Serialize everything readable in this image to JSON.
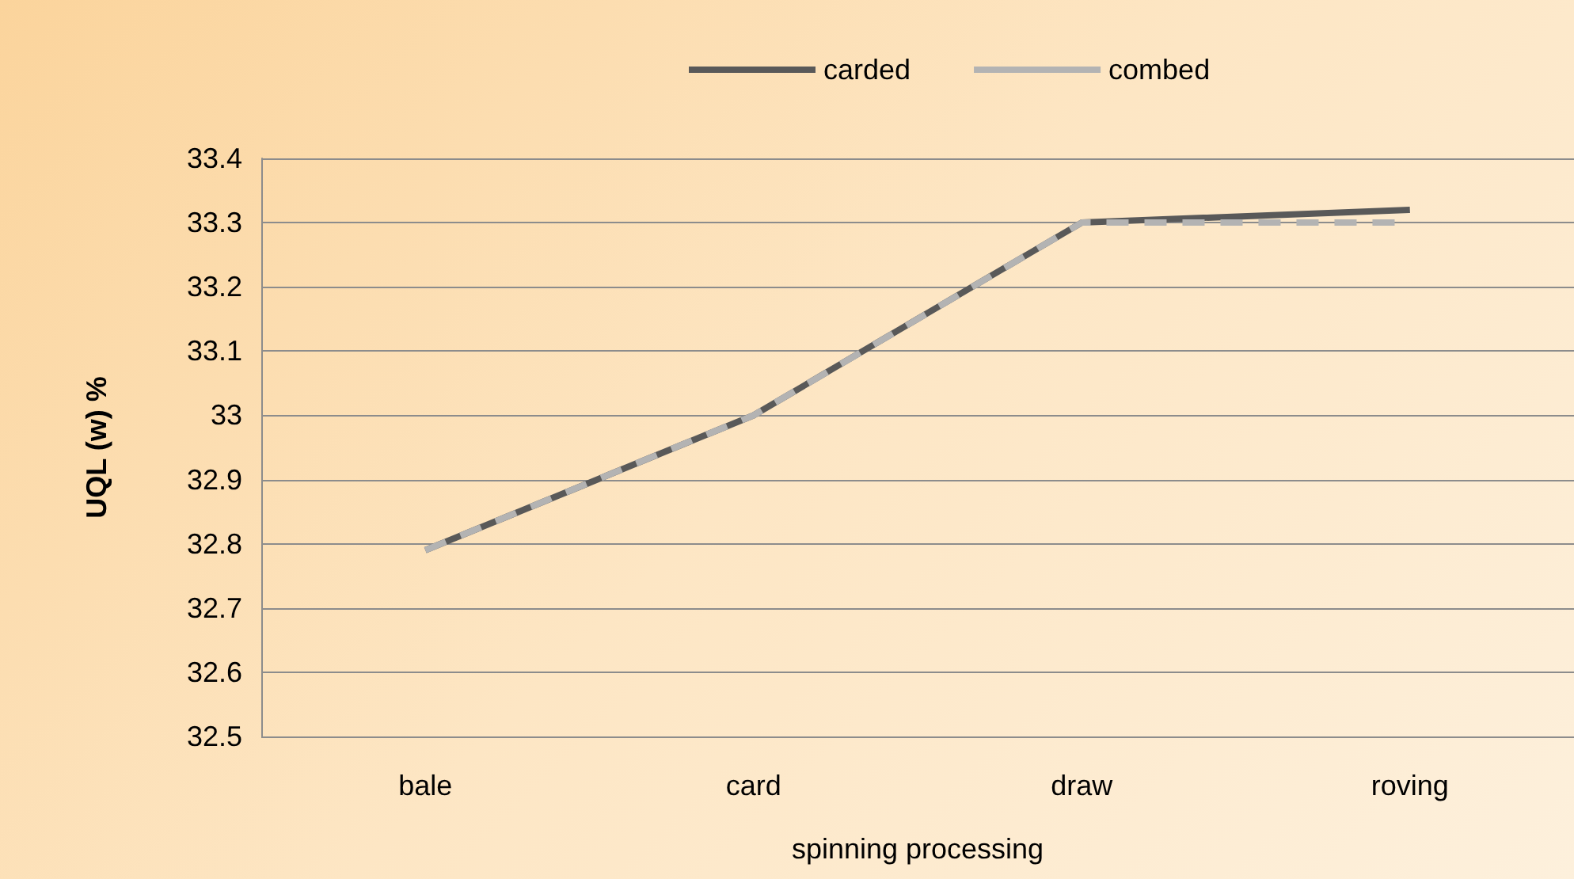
{
  "chart_data": {
    "type": "line",
    "xlabel": "spinning processing",
    "ylabel": "UQL (w) %",
    "categories": [
      "bale",
      "card",
      "draw",
      "roving"
    ],
    "series": [
      {
        "name": "carded",
        "color": "#595959",
        "line_style": "solid",
        "values": [
          32.79,
          33.0,
          33.3,
          33.32
        ]
      },
      {
        "name": "combed",
        "color": "#b3b3b3",
        "line_style": "dashed",
        "values": [
          32.79,
          33.0,
          33.3,
          33.3
        ]
      }
    ],
    "ylim": [
      32.5,
      33.4
    ],
    "yticks": [
      32.5,
      32.6,
      32.7,
      32.8,
      32.9,
      33,
      33.1,
      33.2,
      33.3,
      33.4
    ],
    "grid": "y",
    "legend": "top",
    "marker": "none"
  }
}
